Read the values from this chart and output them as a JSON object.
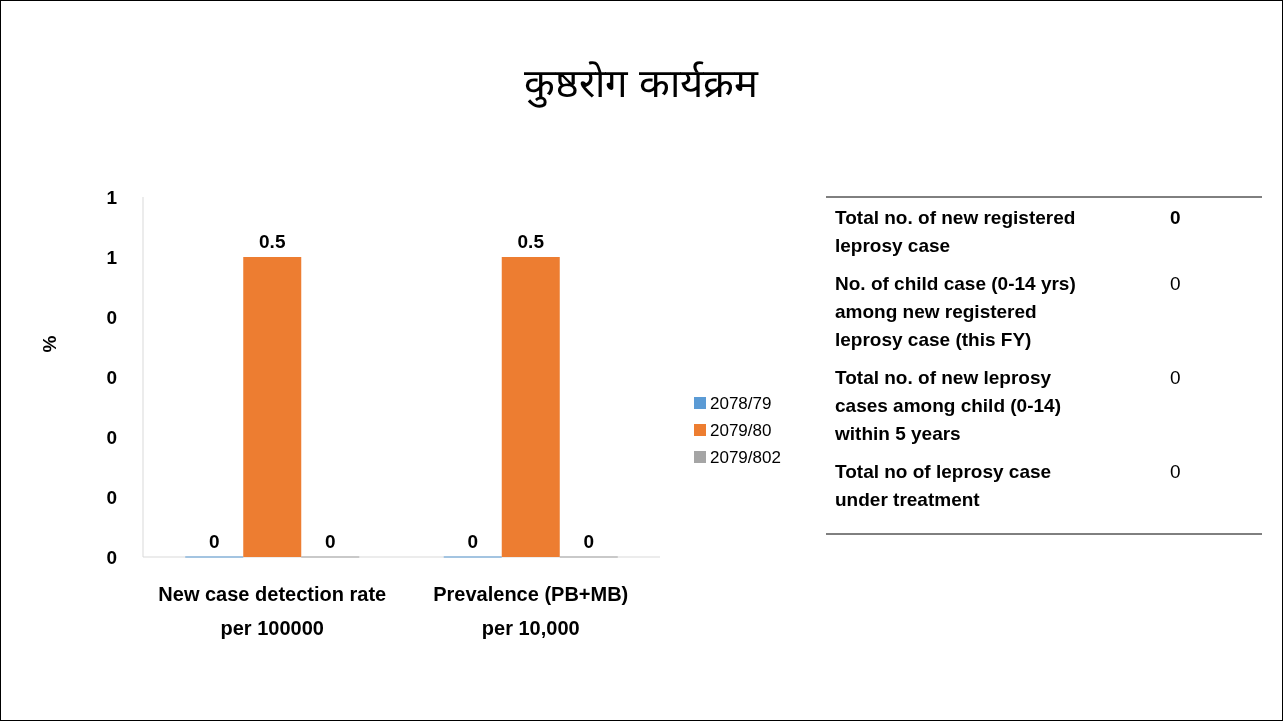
{
  "chart_data": [
    {
      "type": "bar",
      "title": "कुष्ठरोग कार्यक्रम",
      "ylabel": "%",
      "categories": [
        "New case detection rate per 100000",
        "Prevalence (PB+MB) per 10,000"
      ],
      "series": [
        {
          "name": "2078/79",
          "color": "#5b9bd5",
          "values": [
            0,
            0
          ]
        },
        {
          "name": "2079/80",
          "color": "#ed7d31",
          "values": [
            0.5,
            0.5
          ]
        },
        {
          "name": "2079/802",
          "color": "#a5a5a5",
          "values": [
            0,
            0
          ]
        }
      ],
      "ylim": [
        0,
        0.6
      ],
      "yticks": [
        {
          "value": 0,
          "label": "0"
        },
        {
          "value": 0.1,
          "label": "0"
        },
        {
          "value": 0.2,
          "label": "0"
        },
        {
          "value": 0.3,
          "label": "0"
        },
        {
          "value": 0.4,
          "label": "0"
        },
        {
          "value": 0.5,
          "label": "1"
        },
        {
          "value": 0.6,
          "label": "1"
        }
      ],
      "data_labels": true,
      "grid": false,
      "legend": "right"
    },
    {
      "type": "other",
      "annotations": [
        "Total no. of new  registered leprosy case",
        "0",
        "No. of child case (0-14 yrs) among new  registered leprosy case (this FY)",
        "0",
        "Total no. of new leprosy cases  among child (0-14) within 5 years",
        "0",
        "Total no of leprosy case under treatment",
        "0"
      ]
    }
  ]
}
